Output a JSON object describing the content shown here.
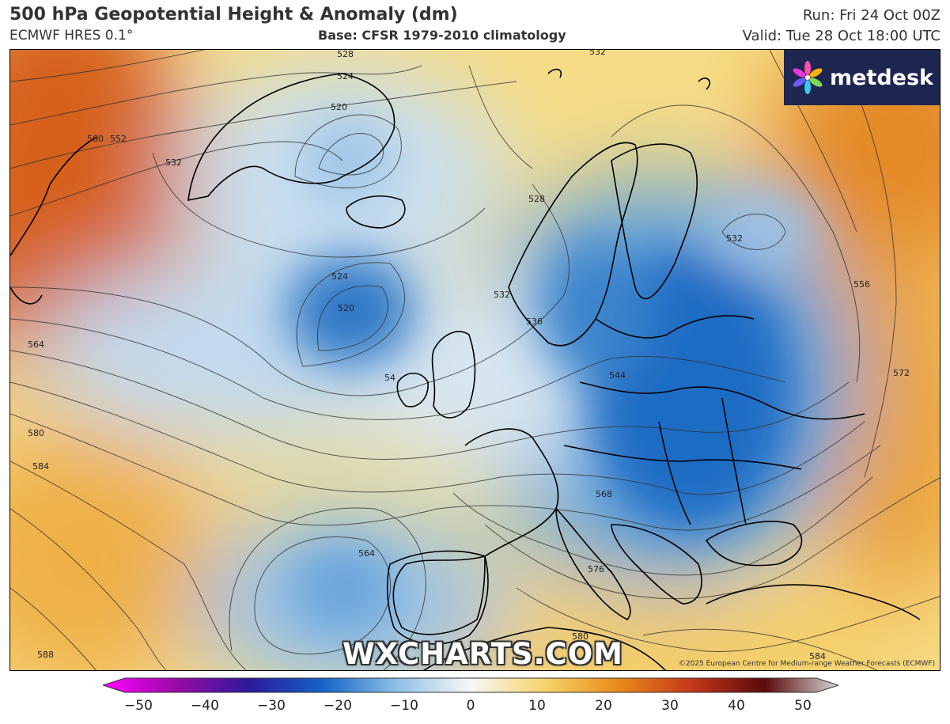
{
  "header": {
    "title": "500 hPa Geopotential Height & Anomaly (dm)",
    "model": "ECMWF HRES 0.1°",
    "base": "Base: CFSR 1979-2010 climatology",
    "run": "Run: Fri 24 Oct 00Z",
    "valid": "Valid: Tue 28 Oct 18:00 UTC"
  },
  "logo": {
    "text": "metdesk",
    "icon": "metdesk-flower-icon"
  },
  "watermark": "WXCHARTS.COM",
  "copyright": "©2025 European Centre for Medium-range Weather Forecasts (ECMWF)",
  "contour_labels": [
    {
      "text": "528"
    },
    {
      "text": "524"
    },
    {
      "text": "520"
    },
    {
      "text": "532"
    },
    {
      "text": "552"
    },
    {
      "text": "560"
    },
    {
      "text": "528"
    },
    {
      "text": "532"
    },
    {
      "text": "524"
    },
    {
      "text": "520"
    },
    {
      "text": "532"
    },
    {
      "text": "536"
    },
    {
      "text": "544"
    },
    {
      "text": "564"
    },
    {
      "text": "580"
    },
    {
      "text": "584"
    },
    {
      "text": "564"
    },
    {
      "text": "568"
    },
    {
      "text": "576"
    },
    {
      "text": "580"
    },
    {
      "text": "588"
    },
    {
      "text": "556"
    },
    {
      "text": "572"
    },
    {
      "text": "584"
    },
    {
      "text": "532"
    },
    {
      "text": "54"
    }
  ],
  "colorbar": {
    "ticks": [
      "−50",
      "−40",
      "−30",
      "−20",
      "−10",
      "0",
      "10",
      "20",
      "30",
      "40",
      "50"
    ],
    "colors": [
      "#ff00ff",
      "#9a0aa8",
      "#2a1a9a",
      "#1565c8",
      "#8fc1e6",
      "#f7f7f7",
      "#f6d56a",
      "#ea8a1a",
      "#c4381a",
      "#5a0a0a",
      "#d8d8d8"
    ]
  }
}
